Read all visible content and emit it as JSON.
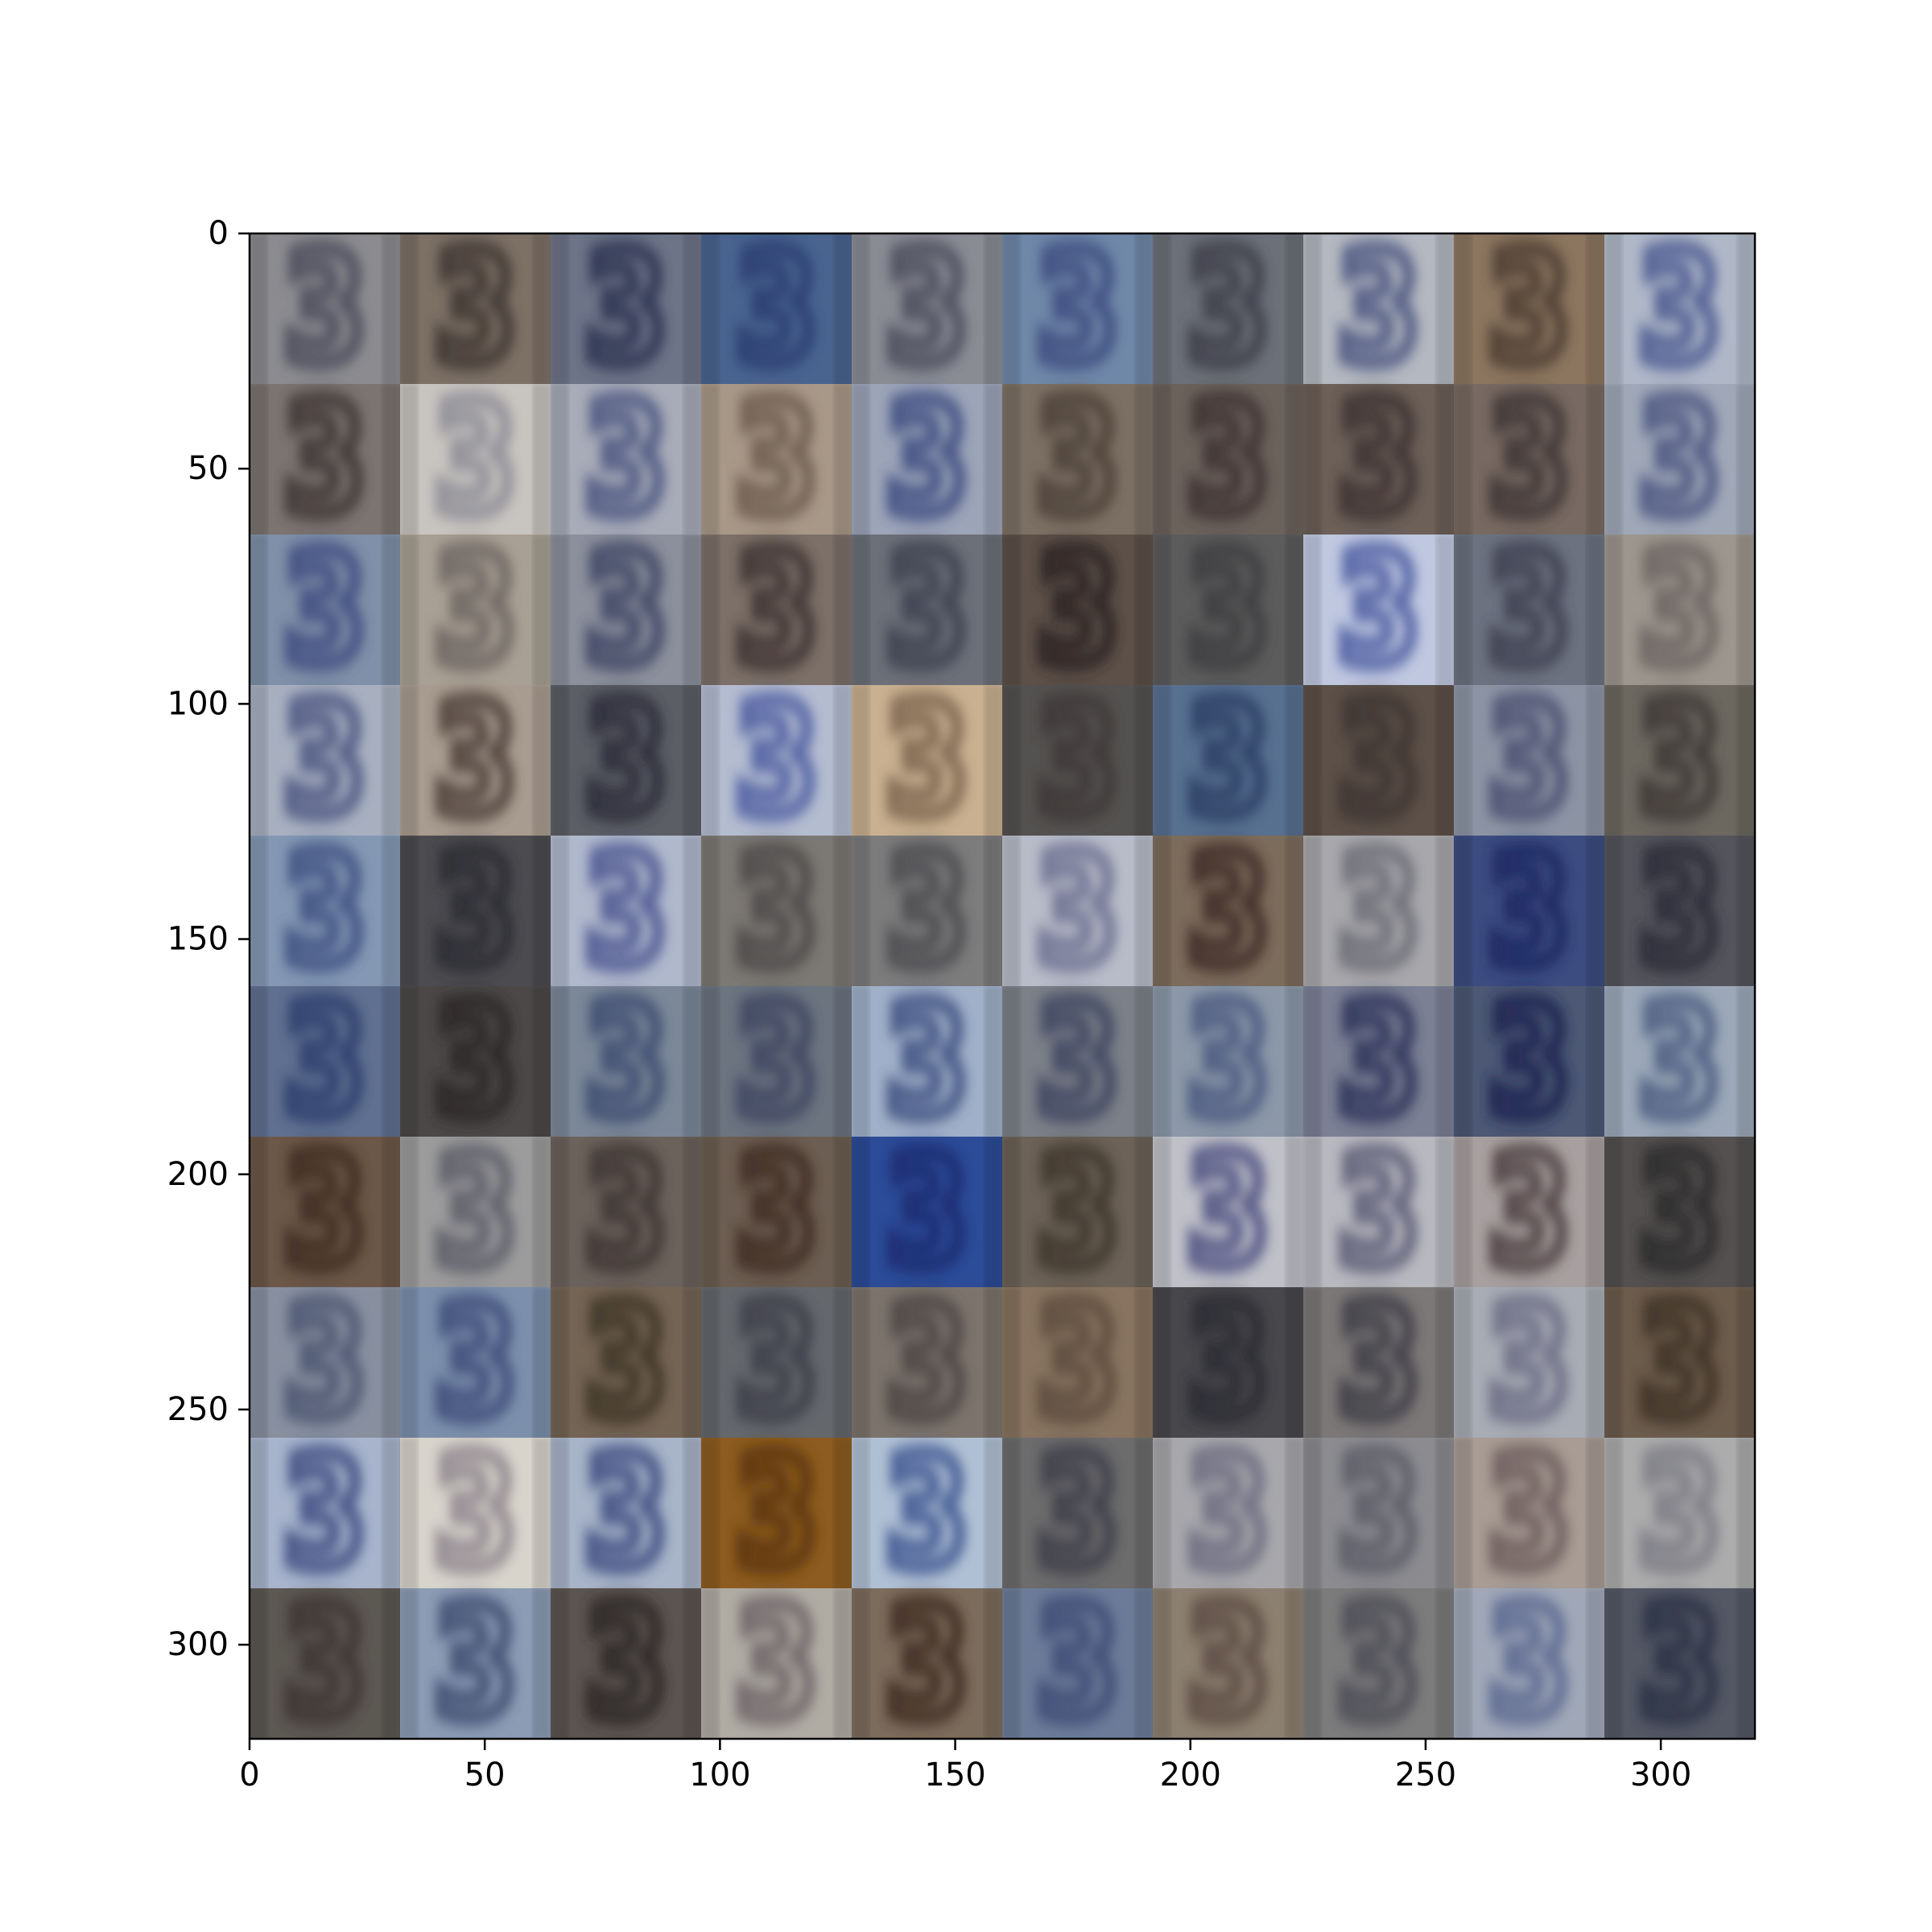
{
  "chart_data": {
    "type": "heatmap",
    "description_kind": "image-grid",
    "grid": {
      "rows": 10,
      "cols": 10,
      "tile_size": 32
    },
    "xlim": [
      0,
      320
    ],
    "ylim": [
      320,
      0
    ],
    "x_ticks": [
      0,
      50,
      100,
      150,
      200,
      250,
      300
    ],
    "y_ticks": [
      0,
      50,
      100,
      150,
      200,
      250,
      300
    ],
    "x_tick_labels": [
      "0",
      "50",
      "100",
      "150",
      "200",
      "250",
      "300"
    ],
    "y_tick_labels": [
      "0",
      "50",
      "100",
      "150",
      "200",
      "250",
      "300"
    ],
    "tile_glyph": "3",
    "tiles": [
      [
        "#8c8c90",
        "#7d7166",
        "#6e7488",
        "#4a6490",
        "#8a8c94",
        "#7088a8",
        "#6c7078",
        "#b4b8c0",
        "#8c7660",
        "#b0b8c8"
      ],
      [
        "#7c7470",
        "#c8c4c0",
        "#a8acb8",
        "#a89888",
        "#9ca4b8",
        "#7c7064",
        "#6c625c",
        "#6c6058",
        "#786a62",
        "#a0a8b8"
      ],
      [
        "#8090a8",
        "#a8a094",
        "#8c909c",
        "#7c7068",
        "#6c7078",
        "#5c5048",
        "#5c5c5c",
        "#c0c8e0",
        "#6c7280",
        "#9c968e"
      ],
      [
        "#a8b0c0",
        "#a89c90",
        "#5c5e66",
        "#b4bcd0",
        "#c8b090",
        "#545250",
        "#587090",
        "#5c5048",
        "#8c94a4",
        "#6c6860"
      ],
      [
        "#8498b4",
        "#4c4c50",
        "#b0b8cc",
        "#7c7874",
        "#7c7c7c",
        "#b8bcc8",
        "#7c6c5c",
        "#a8a8ac",
        "#3c4c80",
        "#54545c"
      ],
      [
        "#607090",
        "#4c4848",
        "#7c8898",
        "#6c7480",
        "#a0b0c8",
        "#7c8088",
        "#8c98a8",
        "#7c8094",
        "#4c5874",
        "#9ca8b8"
      ],
      [
        "#6c5848",
        "#9c9c9c",
        "#6c625c",
        "#6c5e52",
        "#2c4c98",
        "#6c6258",
        "#c0c0c8",
        "#b8b8c0",
        "#a8a0a0",
        "#545050"
      ],
      [
        "#8890a0",
        "#7c90ac",
        "#746454",
        "#64686c",
        "#7c746c",
        "#887460",
        "#48484c",
        "#7c7878",
        "#a8acb4",
        "#6c5c4c"
      ],
      [
        "#a8b4cc",
        "#d8d4cc",
        "#a8b4c8",
        "#8c5c20",
        "#b0c0d4",
        "#6c6c6c",
        "#a8a8ac",
        "#8c8c90",
        "#a89c94",
        "#acacac"
      ],
      [
        "#5c5852",
        "#8c9cb4",
        "#5c5450",
        "#b0aca4",
        "#7c6c5c",
        "#6c7c98",
        "#8c8070",
        "#7c7c7c",
        "#a0a8b8",
        "#545864"
      ]
    ],
    "glyph_colors": [
      [
        "#4c4c5c",
        "#3c3430",
        "#2c3050",
        "#2c3c70",
        "#4c4c5c",
        "#3c4c80",
        "#3c3c48",
        "#4c5480",
        "#4c3c30",
        "#4c5890"
      ],
      [
        "#3c3434",
        "#8c8c94",
        "#4c5480",
        "#6c5c50",
        "#3c4c80",
        "#4c4038",
        "#3c3030",
        "#3c3030",
        "#3c3434",
        "#4c5480"
      ],
      [
        "#3c4c80",
        "#6c6460",
        "#3c4464",
        "#3c3030",
        "#3c4050",
        "#2c2420",
        "#3c3c40",
        "#4c5ca0",
        "#3c4050",
        "#6c6460"
      ],
      [
        "#4c5480",
        "#4c3c38",
        "#2c2c38",
        "#4c5ca0",
        "#7c6450",
        "#3c3838",
        "#2c3c64",
        "#3c3430",
        "#4c5070",
        "#3c3834"
      ],
      [
        "#3c5080",
        "#2c2c30",
        "#4c5490",
        "#4c4848",
        "#4c4c50",
        "#6c7090",
        "#3c2c28",
        "#6c6c74",
        "#1c2860",
        "#2c2c38"
      ],
      [
        "#2c3c6c",
        "#2c2828",
        "#3c4c70",
        "#3c4460",
        "#3c5080",
        "#3c4460",
        "#4c5880",
        "#2c3058",
        "#1c2450",
        "#4c5c80"
      ],
      [
        "#3c2c20",
        "#5c5c68",
        "#3c3430",
        "#3c2c24",
        "#1c2c70",
        "#3c342c",
        "#4c5080",
        "#5c5c74",
        "#4c3c40",
        "#2c2c2c"
      ],
      [
        "#4c5470",
        "#3c4c78",
        "#3c3428",
        "#3c3c48",
        "#4c4444",
        "#5c4c3c",
        "#2c2c30",
        "#3c3c44",
        "#6c6c84",
        "#3c3028"
      ],
      [
        "#3c4c80",
        "#8c848c",
        "#3c4c80",
        "#5c3410",
        "#3c5490",
        "#3c3c48",
        "#6c6c80",
        "#5c5c68",
        "#6c5c5c",
        "#7c7c84"
      ],
      [
        "#3c3430",
        "#3c4c70",
        "#2c2828",
        "#6c6468",
        "#3c2c24",
        "#3c4c74",
        "#5c4c44",
        "#4c4c54",
        "#5c6890",
        "#2c3044"
      ]
    ]
  }
}
